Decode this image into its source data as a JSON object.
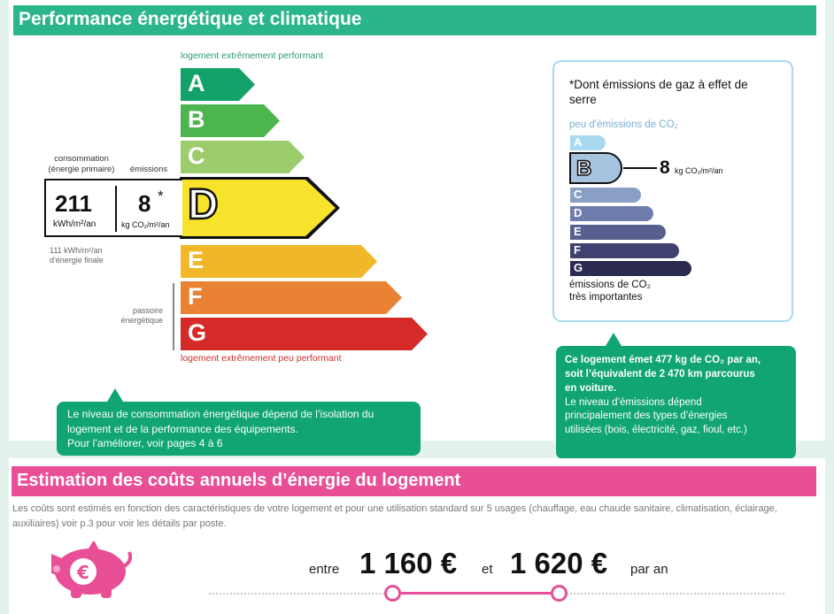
{
  "energy_section": {
    "title": "Performance énergétique et climatique",
    "label_top": "logement extrêmement performant",
    "label_bottom": "logement extrêmement peu performant",
    "classes": [
      {
        "letter": "A",
        "color": "#12a26a"
      },
      {
        "letter": "B",
        "color": "#4db54e"
      },
      {
        "letter": "C",
        "color": "#9ccc6b"
      },
      {
        "letter": "D",
        "color": "#f7e32b"
      },
      {
        "letter": "E",
        "color": "#f0b728"
      },
      {
        "letter": "F",
        "color": "#ea8233"
      },
      {
        "letter": "G",
        "color": "#d52b28"
      }
    ],
    "current_class": "D",
    "consumption_label_1": "consommation",
    "consumption_label_2": "(énergie primaire)",
    "emissions_label": "émissions",
    "consumption_value": "211",
    "consumption_unit": "kWh/m²/an",
    "emissions_value": "8",
    "emissions_star": "*",
    "emissions_unit": "kg CO₂/m²/an",
    "final_energy_1": "111 kWh/m²/an",
    "final_energy_2": "d'énergie finale",
    "passoire_1": "passoire",
    "passoire_2": "énergétique",
    "bubble_text_1": "Le niveau de consommation énergétique dépend de l’isolation du",
    "bubble_text_2": "logement et de la performance des équipements.",
    "bubble_text_3": "Pour l’améliorer, voir pages 4 à 6"
  },
  "ges": {
    "title": "*Dont émissions de gaz à effet de serre",
    "low_label": "peu d'émissions de CO₂",
    "high_label_1": "émissions de CO₂",
    "high_label_2": "très importantes",
    "classes": [
      {
        "letter": "A",
        "color": "#a8d9f0"
      },
      {
        "letter": "B",
        "color": "#a6c3e0"
      },
      {
        "letter": "C",
        "color": "#8a9fc6"
      },
      {
        "letter": "D",
        "color": "#6e7dab"
      },
      {
        "letter": "E",
        "color": "#575f8e"
      },
      {
        "letter": "F",
        "color": "#3f4271"
      },
      {
        "letter": "G",
        "color": "#2b2a51"
      }
    ],
    "current_class": "B",
    "value": "8",
    "unit": "kg CO₂/m²/an",
    "bubble_line_1": "Ce logement émet 477 kg de CO₂ par an,",
    "bubble_line_2": "soit l’équivalent de 2 470 km parcourus",
    "bubble_line_3": "en voiture.",
    "bubble_line_4": "Le niveau d’émissions dépend",
    "bubble_line_5": "principalement des types d’énergies",
    "bubble_line_6": "utilisées (bois, électricité, gaz, fioul, etc.)"
  },
  "costs": {
    "title": "Estimation des coûts annuels d’énergie du logement",
    "note": "Les coûts sont estimés en fonction des caractéristiques de votre logement et pour une utilisation standard sur 5 usages (chauffage, eau chaude sanitaire, climatisation, éclairage, auxiliaires) voir p.3 pour voir les détails par poste.",
    "between": "entre",
    "min": "1 160 €",
    "and": "et",
    "max": "1 620 €",
    "per_year": "par an",
    "piggy_symbol": "€",
    "piggy_icon": "piggy-bank-icon",
    "accent_color": "#e84f96"
  }
}
